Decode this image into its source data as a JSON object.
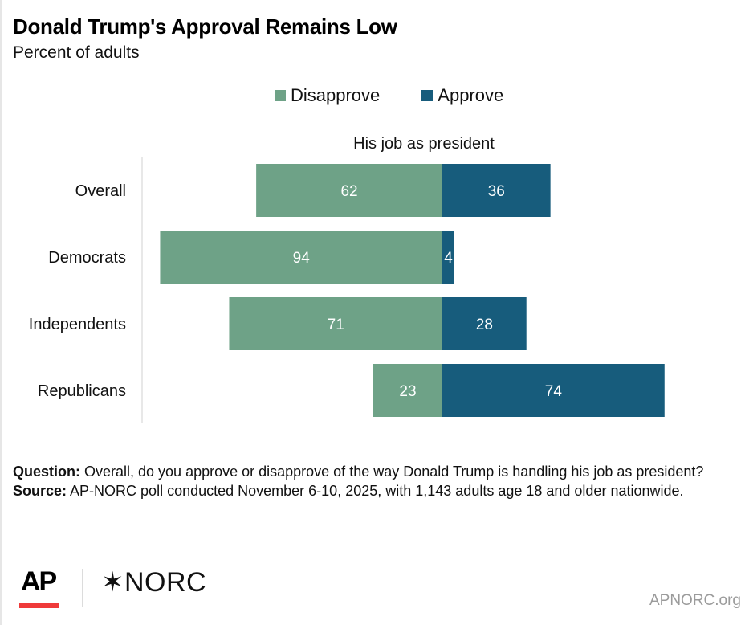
{
  "header": {
    "title": "Donald Trump's Approval Remains Low",
    "subtitle": "Percent of adults"
  },
  "legend": {
    "items": [
      {
        "label": "Disapprove",
        "color": "#6ea287"
      },
      {
        "label": "Approve",
        "color": "#175c7c"
      }
    ]
  },
  "panel_title": "His job as president",
  "chart_data": {
    "type": "bar",
    "orientation": "horizontal-diverging-stacked",
    "title": "Donald Trump's Approval Remains Low",
    "subtitle": "Percent of adults",
    "panel_title": "His job as president",
    "xlabel": "",
    "ylabel": "",
    "categories": [
      "Overall",
      "Democrats",
      "Independents",
      "Republicans"
    ],
    "series": [
      {
        "name": "Disapprove",
        "color": "#6ea287",
        "values": [
          62,
          94,
          71,
          23
        ],
        "direction": "left"
      },
      {
        "name": "Approve",
        "color": "#175c7c",
        "values": [
          36,
          4,
          28,
          74
        ],
        "direction": "right"
      }
    ],
    "xlim": [
      -100,
      100
    ],
    "grid": false,
    "legend_position": "top-center",
    "data_labels": true
  },
  "notes": {
    "question_label": "Question:",
    "question_text": " Overall, do you approve or disapprove of the way Donald Trump is handling his job as president?",
    "source_label": "Source:",
    "source_text": " AP-NORC poll conducted November 6-10, 2025, with 1,143 adults age 18 and older nationwide."
  },
  "footer": {
    "logo_ap": "AP",
    "logo_norc": "✶NORC",
    "site": "APNORC.org"
  }
}
